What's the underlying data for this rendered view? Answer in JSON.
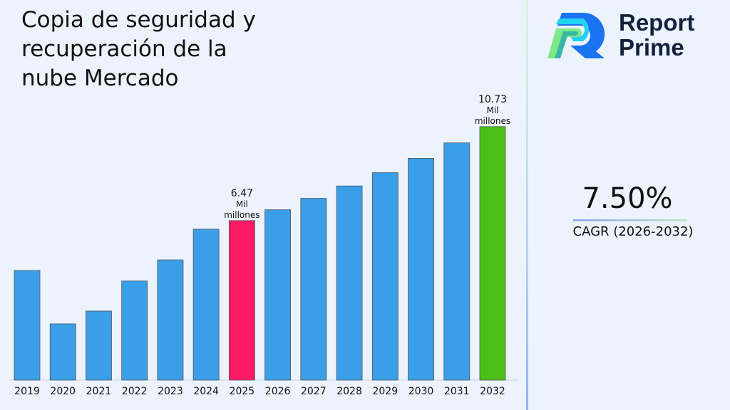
{
  "title": "Copia de seguridad y recuperación de la nube Mercado",
  "logo": {
    "line1": "Report",
    "line2": "Prime"
  },
  "cagr": {
    "value": "7.50%",
    "label": "CAGR (2026-2032)"
  },
  "chart_data": {
    "type": "bar",
    "title": "Copia de seguridad y recuperación de la nube Mercado",
    "xlabel": "",
    "ylabel": "",
    "categories": [
      "2019",
      "2020",
      "2021",
      "2022",
      "2023",
      "2024",
      "2025",
      "2026",
      "2027",
      "2028",
      "2029",
      "2030",
      "2031",
      "2032"
    ],
    "values": [
      4.21,
      1.79,
      2.37,
      3.73,
      4.69,
      6.08,
      6.47,
      6.96,
      7.48,
      8.04,
      8.64,
      9.29,
      9.99,
      10.73
    ],
    "ylim": [
      -0.76,
      12
    ],
    "grid": false,
    "colors": {
      "default": "#3a9fe8",
      "highlight_2025": "#ff1a66",
      "highlight_2032": "#4cc016"
    },
    "annotations": [
      {
        "category": "2025",
        "lines": [
          "6.47",
          "Mil",
          "millones"
        ]
      },
      {
        "category": "2032",
        "lines": [
          "10.73",
          "Mil",
          "millones"
        ]
      }
    ]
  }
}
